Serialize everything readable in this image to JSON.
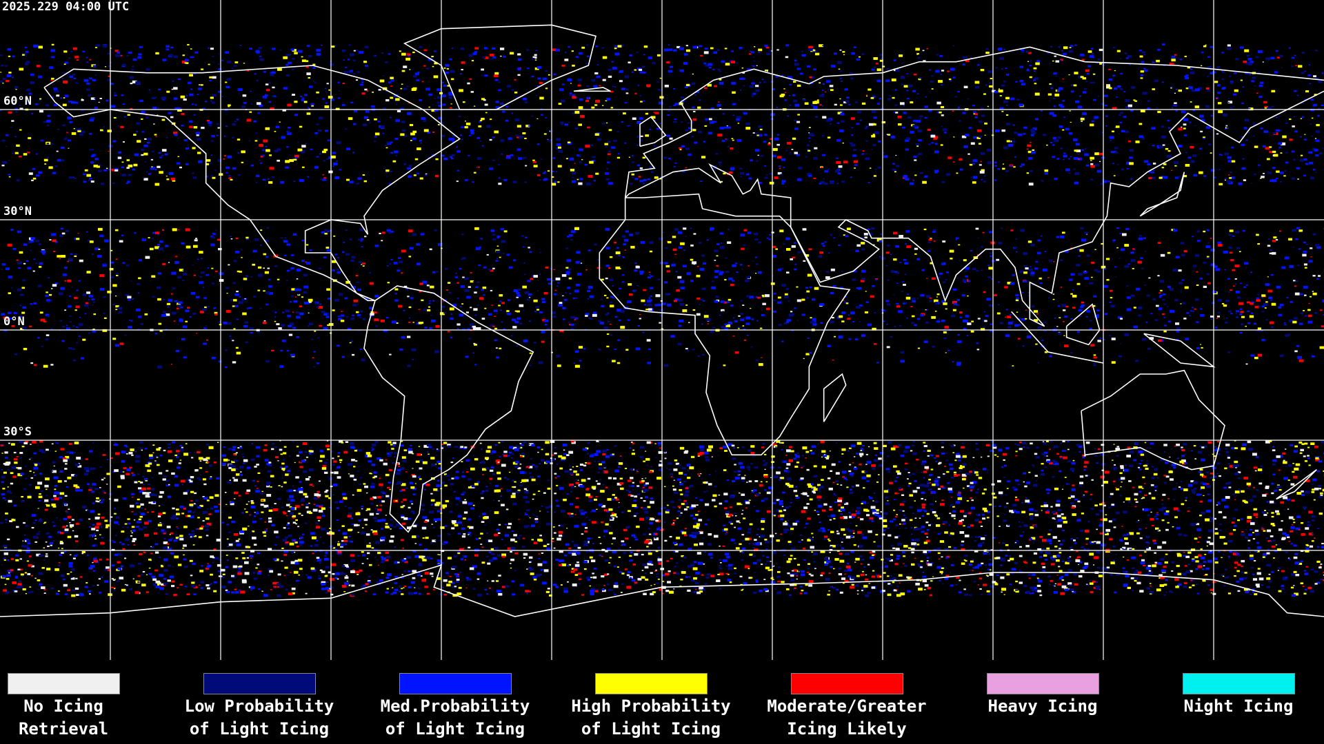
{
  "header": {
    "timestamp": "2025.229 04:00 UTC"
  },
  "latitude_labels": [
    "60°N",
    "30°N",
    "0°N",
    "30°S"
  ],
  "legend": [
    {
      "color": "#f0f0f0",
      "lines": [
        "No Icing",
        "Retrieval"
      ]
    },
    {
      "color": "#000a78",
      "lines": [
        "Low Probability",
        "of Light Icing"
      ]
    },
    {
      "color": "#0014ff",
      "lines": [
        "Med.Probability",
        "of Light Icing"
      ]
    },
    {
      "color": "#ffff00",
      "lines": [
        "High Probability",
        "of Light Icing"
      ]
    },
    {
      "color": "#ff0000",
      "lines": [
        "Moderate/Greater",
        "Icing Likely"
      ]
    },
    {
      "color": "#e8a0e0",
      "lines": [
        "Heavy Icing"
      ]
    },
    {
      "color": "#00f0f0",
      "lines": [
        "Night Icing"
      ]
    }
  ]
}
